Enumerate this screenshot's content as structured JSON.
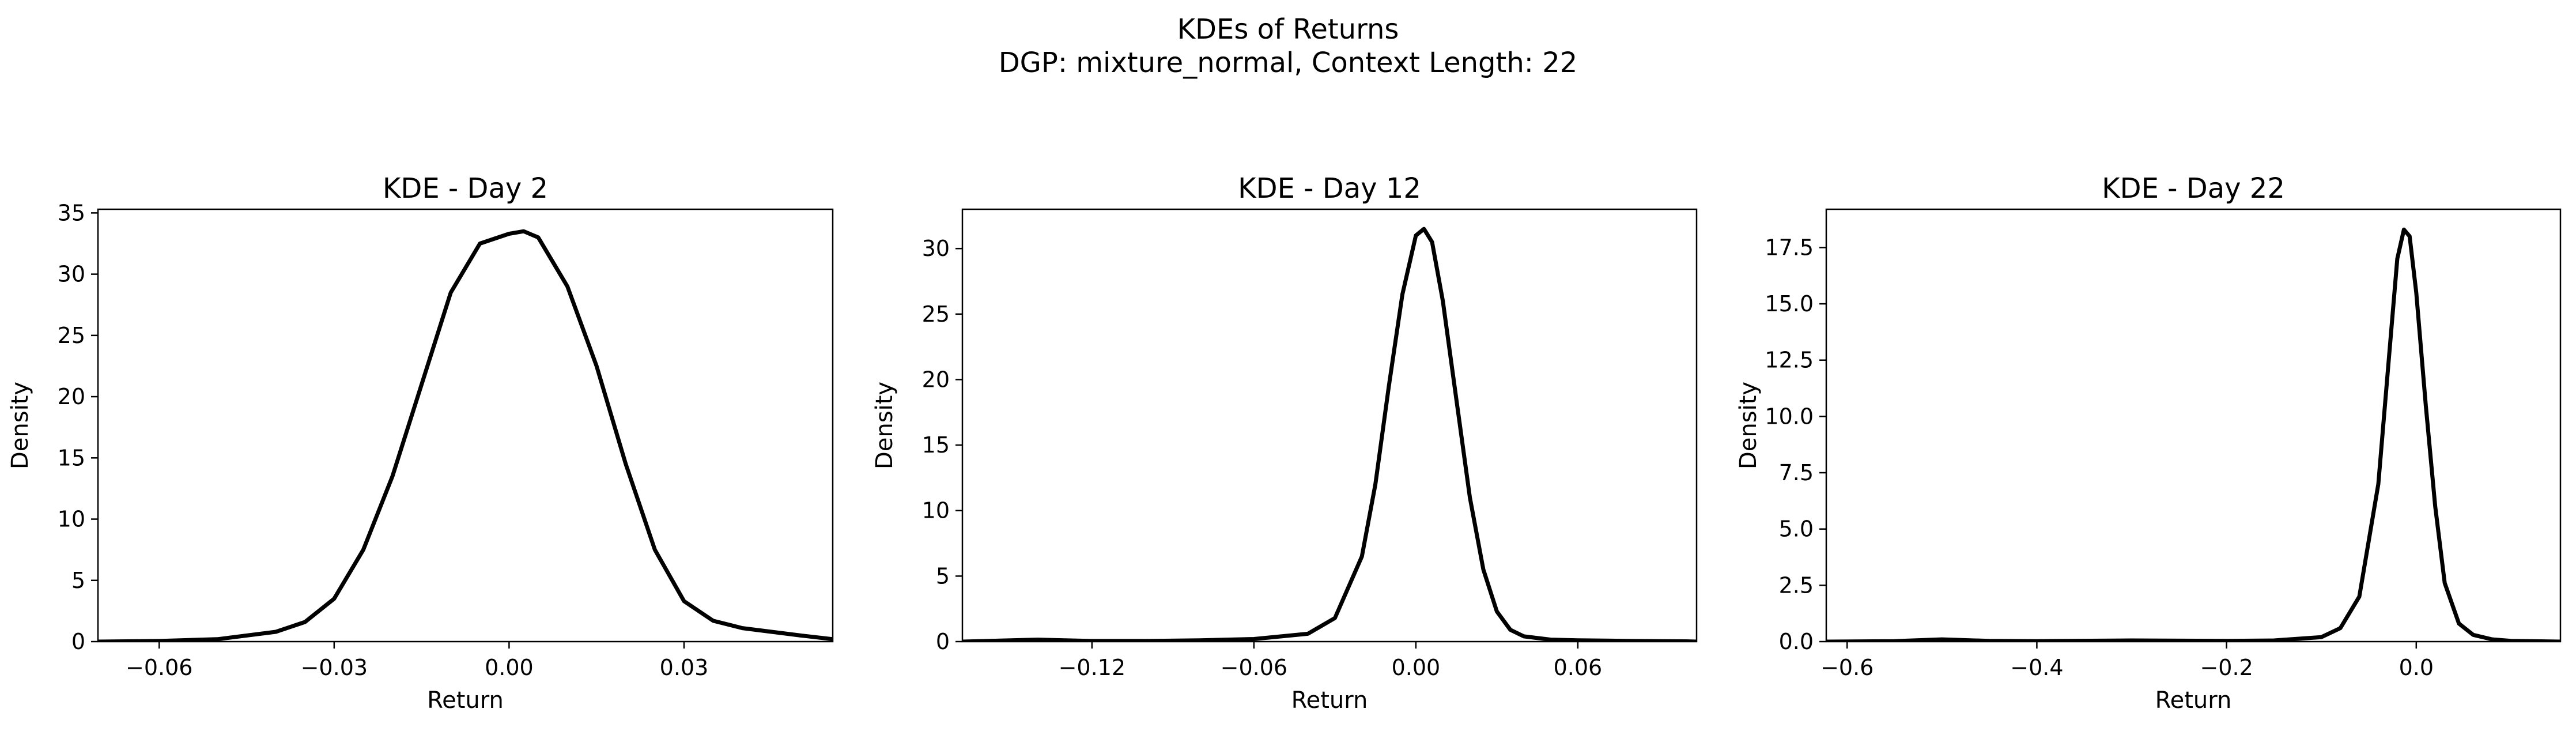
{
  "figure": {
    "title_line1": "KDEs of Returns",
    "title_line2": "DGP: mixture_normal, Context Length: 22"
  },
  "chart_data": [
    {
      "type": "line",
      "title": "KDE - Day 2",
      "xlabel": "Return",
      "ylabel": "Density",
      "xlim": [
        -0.0705,
        0.0555
      ],
      "ylim": [
        0,
        35.3
      ],
      "xticks": [
        -0.06,
        -0.03,
        0.0,
        0.03
      ],
      "xtick_labels": [
        "−0.06",
        "−0.03",
        "0.00",
        "0.03"
      ],
      "yticks": [
        0,
        5,
        10,
        15,
        20,
        25,
        30,
        35
      ],
      "ytick_labels": [
        "0",
        "5",
        "10",
        "15",
        "20",
        "25",
        "30",
        "35"
      ],
      "grid": false,
      "color": "#000000",
      "series": [
        {
          "x": [
            -0.0705,
            -0.06,
            -0.05,
            -0.04,
            -0.035,
            -0.03,
            -0.025,
            -0.02,
            -0.015,
            -0.01,
            -0.005,
            0.0,
            0.0025,
            0.005,
            0.01,
            0.015,
            0.02,
            0.025,
            0.03,
            0.035,
            0.04,
            0.045,
            0.05,
            0.0555
          ],
          "y": [
            0.0,
            0.05,
            0.2,
            0.8,
            1.6,
            3.5,
            7.5,
            13.5,
            21.0,
            28.5,
            32.5,
            33.3,
            33.5,
            33.0,
            29.0,
            22.5,
            14.5,
            7.5,
            3.3,
            1.7,
            1.1,
            0.8,
            0.5,
            0.2
          ]
        }
      ]
    },
    {
      "type": "line",
      "title": "KDE - Day 12",
      "xlabel": "Return",
      "ylabel": "Density",
      "xlim": [
        -0.168,
        0.104
      ],
      "ylim": [
        0,
        33.0
      ],
      "xticks": [
        -0.12,
        -0.06,
        0.0,
        0.06
      ],
      "xtick_labels": [
        "−0.12",
        "−0.06",
        "0.00",
        "0.06"
      ],
      "yticks": [
        0,
        5,
        10,
        15,
        20,
        25,
        30
      ],
      "ytick_labels": [
        "0",
        "5",
        "10",
        "15",
        "20",
        "25",
        "30"
      ],
      "grid": false,
      "color": "#000000",
      "series": [
        {
          "x": [
            -0.168,
            -0.15,
            -0.14,
            -0.13,
            -0.12,
            -0.1,
            -0.08,
            -0.06,
            -0.04,
            -0.03,
            -0.02,
            -0.015,
            -0.01,
            -0.005,
            0.0,
            0.003,
            0.006,
            0.01,
            0.015,
            0.02,
            0.025,
            0.03,
            0.035,
            0.04,
            0.05,
            0.06,
            0.08,
            0.1,
            0.104
          ],
          "y": [
            0.0,
            0.1,
            0.15,
            0.1,
            0.05,
            0.05,
            0.1,
            0.2,
            0.6,
            1.8,
            6.5,
            12.0,
            19.5,
            26.5,
            31.0,
            31.5,
            30.5,
            26.0,
            18.5,
            11.0,
            5.5,
            2.3,
            0.9,
            0.4,
            0.15,
            0.1,
            0.05,
            0.02,
            0.0
          ]
        }
      ]
    },
    {
      "type": "line",
      "title": "KDE - Day 22",
      "xlabel": "Return",
      "ylabel": "Density",
      "xlim": [
        -0.622,
        0.152
      ],
      "ylim": [
        0,
        19.2
      ],
      "xticks": [
        -0.6,
        -0.4,
        -0.2,
        0.0
      ],
      "xtick_labels": [
        "−0.6",
        "−0.4",
        "−0.2",
        "0.0"
      ],
      "yticks": [
        0,
        2.5,
        5,
        7.5,
        10,
        12.5,
        15,
        17.5
      ],
      "ytick_labels": [
        "0.0",
        "2.5",
        "5.0",
        "7.5",
        "10.0",
        "12.5",
        "15.0",
        "17.5"
      ],
      "grid": false,
      "color": "#000000",
      "series": [
        {
          "x": [
            -0.622,
            -0.55,
            -0.5,
            -0.45,
            -0.4,
            -0.3,
            -0.2,
            -0.15,
            -0.1,
            -0.08,
            -0.06,
            -0.04,
            -0.03,
            -0.02,
            -0.013,
            -0.007,
            0.0,
            0.01,
            0.02,
            0.03,
            0.045,
            0.06,
            0.08,
            0.1,
            0.152
          ],
          "y": [
            0.0,
            0.02,
            0.1,
            0.03,
            0.02,
            0.05,
            0.03,
            0.05,
            0.2,
            0.6,
            2.0,
            7.0,
            12.0,
            17.0,
            18.3,
            18.0,
            15.5,
            10.5,
            6.0,
            2.6,
            0.8,
            0.3,
            0.1,
            0.03,
            0.0
          ]
        }
      ]
    }
  ]
}
